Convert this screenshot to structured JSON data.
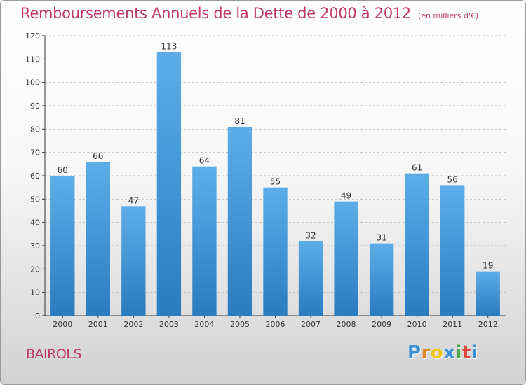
{
  "chart_data": {
    "type": "bar",
    "title": "Remboursements Annuels de la Dette de 2000 à 2012",
    "subtitle": "(en milliers d'€)",
    "categories": [
      "2000",
      "2001",
      "2002",
      "2003",
      "2004",
      "2005",
      "2006",
      "2007",
      "2008",
      "2009",
      "2010",
      "2011",
      "2012"
    ],
    "values": [
      60,
      66,
      47,
      113,
      64,
      81,
      55,
      32,
      49,
      31,
      61,
      56,
      19
    ],
    "ylim": [
      0,
      120
    ],
    "yticks": [
      0,
      10,
      20,
      30,
      40,
      50,
      60,
      70,
      80,
      90,
      100,
      110,
      120
    ],
    "xlabel": "",
    "ylabel": "",
    "grid": true,
    "bar_color_top": "#5dade8",
    "bar_color_bottom": "#2a7cc0"
  },
  "commune": "BAIROLS",
  "logo": {
    "letters": [
      "P",
      "r",
      "o",
      "x",
      "i",
      "t",
      "i"
    ],
    "colors": [
      "#3a8fd6",
      "#e0862a",
      "#f0c419",
      "#3a8fd6",
      "#4aa84a",
      "#e04a3a",
      "#3a8fd6"
    ]
  },
  "colors": {
    "title": "#c0396a",
    "axis": "#333333",
    "grid": "#aaaaaa"
  }
}
